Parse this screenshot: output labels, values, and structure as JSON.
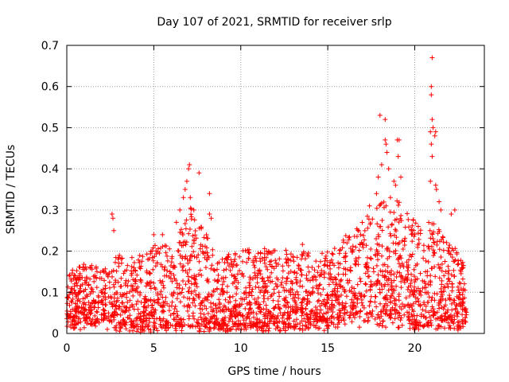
{
  "chart_data": {
    "type": "scatter",
    "title": "Day 107 of 2021, SRMTID for receiver srlp",
    "xlabel": "GPS time / hours",
    "ylabel": "SRMTID / TECUs",
    "xlim": [
      0,
      24
    ],
    "ylim": [
      0,
      0.7
    ],
    "xticks": [
      0,
      5,
      10,
      15,
      20
    ],
    "xtick_labels": [
      "0",
      "5",
      "10",
      "15",
      "20"
    ],
    "yticks": [
      0,
      0.1,
      0.2,
      0.3,
      0.4,
      0.5,
      0.6,
      0.7
    ],
    "ytick_labels": [
      "0",
      "0.1",
      "0.2",
      "0.3",
      "0.4",
      "0.5",
      "0.6",
      "0.7"
    ],
    "grid": true,
    "marker": "+",
    "color": "#ff0000",
    "series": [
      {
        "name": "srlp",
        "envelope": {
          "note": "approximate upper and lower bounds of the dense point cloud, sampled every half hour",
          "x": [
            0,
            0.5,
            1,
            1.5,
            2,
            2.5,
            3,
            3.5,
            4,
            4.5,
            5,
            5.5,
            6,
            6.5,
            7,
            7.5,
            8,
            8.5,
            9,
            9.5,
            10,
            10.5,
            11,
            11.5,
            12,
            12.5,
            13,
            13.5,
            14,
            14.5,
            15,
            15.5,
            16,
            16.5,
            17,
            17.5,
            18,
            18.5,
            19,
            19.5,
            20,
            20.5,
            21,
            21.5,
            22,
            22.5,
            23
          ],
          "upper": [
            0.15,
            0.16,
            0.17,
            0.17,
            0.15,
            0.17,
            0.2,
            0.17,
            0.2,
            0.19,
            0.22,
            0.23,
            0.2,
            0.26,
            0.32,
            0.27,
            0.25,
            0.2,
            0.18,
            0.2,
            0.2,
            0.21,
            0.2,
            0.22,
            0.2,
            0.21,
            0.2,
            0.22,
            0.2,
            0.2,
            0.2,
            0.22,
            0.24,
            0.25,
            0.28,
            0.3,
            0.33,
            0.32,
            0.33,
            0.3,
            0.28,
            0.25,
            0.3,
            0.25,
            0.22,
            0.2,
            0.15
          ],
          "lower": [
            0.04,
            0.04,
            0.04,
            0.03,
            0.03,
            0.03,
            0.02,
            0.02,
            0.01,
            0.01,
            0.01,
            0.02,
            0.02,
            0.02,
            0.02,
            0.02,
            0.02,
            0.02,
            0.02,
            0.02,
            0.02,
            0.02,
            0.02,
            0.02,
            0.02,
            0.02,
            0.02,
            0.02,
            0.03,
            0.03,
            0.03,
            0.04,
            0.05,
            0.06,
            0.06,
            0.06,
            0.04,
            0.05,
            0.03,
            0.03,
            0.02,
            0.02,
            0.02,
            0.03,
            0.03,
            0.03,
            0.03
          ]
        },
        "notable_points": [
          {
            "x": 2.6,
            "y": 0.29
          },
          {
            "x": 2.65,
            "y": 0.28
          },
          {
            "x": 2.7,
            "y": 0.25
          },
          {
            "x": 5.0,
            "y": 0.24
          },
          {
            "x": 5.5,
            "y": 0.24
          },
          {
            "x": 6.3,
            "y": 0.27
          },
          {
            "x": 6.5,
            "y": 0.3
          },
          {
            "x": 6.7,
            "y": 0.33
          },
          {
            "x": 6.8,
            "y": 0.35
          },
          {
            "x": 6.9,
            "y": 0.37
          },
          {
            "x": 7.0,
            "y": 0.4
          },
          {
            "x": 7.05,
            "y": 0.41
          },
          {
            "x": 7.1,
            "y": 0.33
          },
          {
            "x": 7.6,
            "y": 0.39
          },
          {
            "x": 7.3,
            "y": 0.3
          },
          {
            "x": 8.2,
            "y": 0.34
          },
          {
            "x": 8.2,
            "y": 0.29
          },
          {
            "x": 8.3,
            "y": 0.28
          },
          {
            "x": 17.4,
            "y": 0.31
          },
          {
            "x": 17.8,
            "y": 0.34
          },
          {
            "x": 17.9,
            "y": 0.38
          },
          {
            "x": 18.0,
            "y": 0.53
          },
          {
            "x": 18.3,
            "y": 0.52
          },
          {
            "x": 18.1,
            "y": 0.41
          },
          {
            "x": 18.3,
            "y": 0.47
          },
          {
            "x": 18.35,
            "y": 0.46
          },
          {
            "x": 18.4,
            "y": 0.44
          },
          {
            "x": 18.6,
            "y": 0.33
          },
          {
            "x": 18.8,
            "y": 0.37
          },
          {
            "x": 18.9,
            "y": 0.36
          },
          {
            "x": 19.0,
            "y": 0.47
          },
          {
            "x": 19.1,
            "y": 0.47
          },
          {
            "x": 19.05,
            "y": 0.43
          },
          {
            "x": 19.2,
            "y": 0.38
          },
          {
            "x": 18.5,
            "y": 0.4
          },
          {
            "x": 20.9,
            "y": 0.37
          },
          {
            "x": 21.0,
            "y": 0.67
          },
          {
            "x": 20.95,
            "y": 0.6
          },
          {
            "x": 20.95,
            "y": 0.58
          },
          {
            "x": 21.0,
            "y": 0.52
          },
          {
            "x": 21.05,
            "y": 0.5
          },
          {
            "x": 20.9,
            "y": 0.49
          },
          {
            "x": 21.2,
            "y": 0.49
          },
          {
            "x": 21.15,
            "y": 0.48
          },
          {
            "x": 20.95,
            "y": 0.46
          },
          {
            "x": 21.0,
            "y": 0.43
          },
          {
            "x": 21.2,
            "y": 0.36
          },
          {
            "x": 21.25,
            "y": 0.35
          },
          {
            "x": 21.4,
            "y": 0.32
          },
          {
            "x": 21.5,
            "y": 0.3
          },
          {
            "x": 22.1,
            "y": 0.29
          },
          {
            "x": 22.3,
            "y": 0.3
          },
          {
            "x": 20.2,
            "y": 0.26
          },
          {
            "x": 19.8,
            "y": 0.25
          }
        ]
      }
    ]
  }
}
